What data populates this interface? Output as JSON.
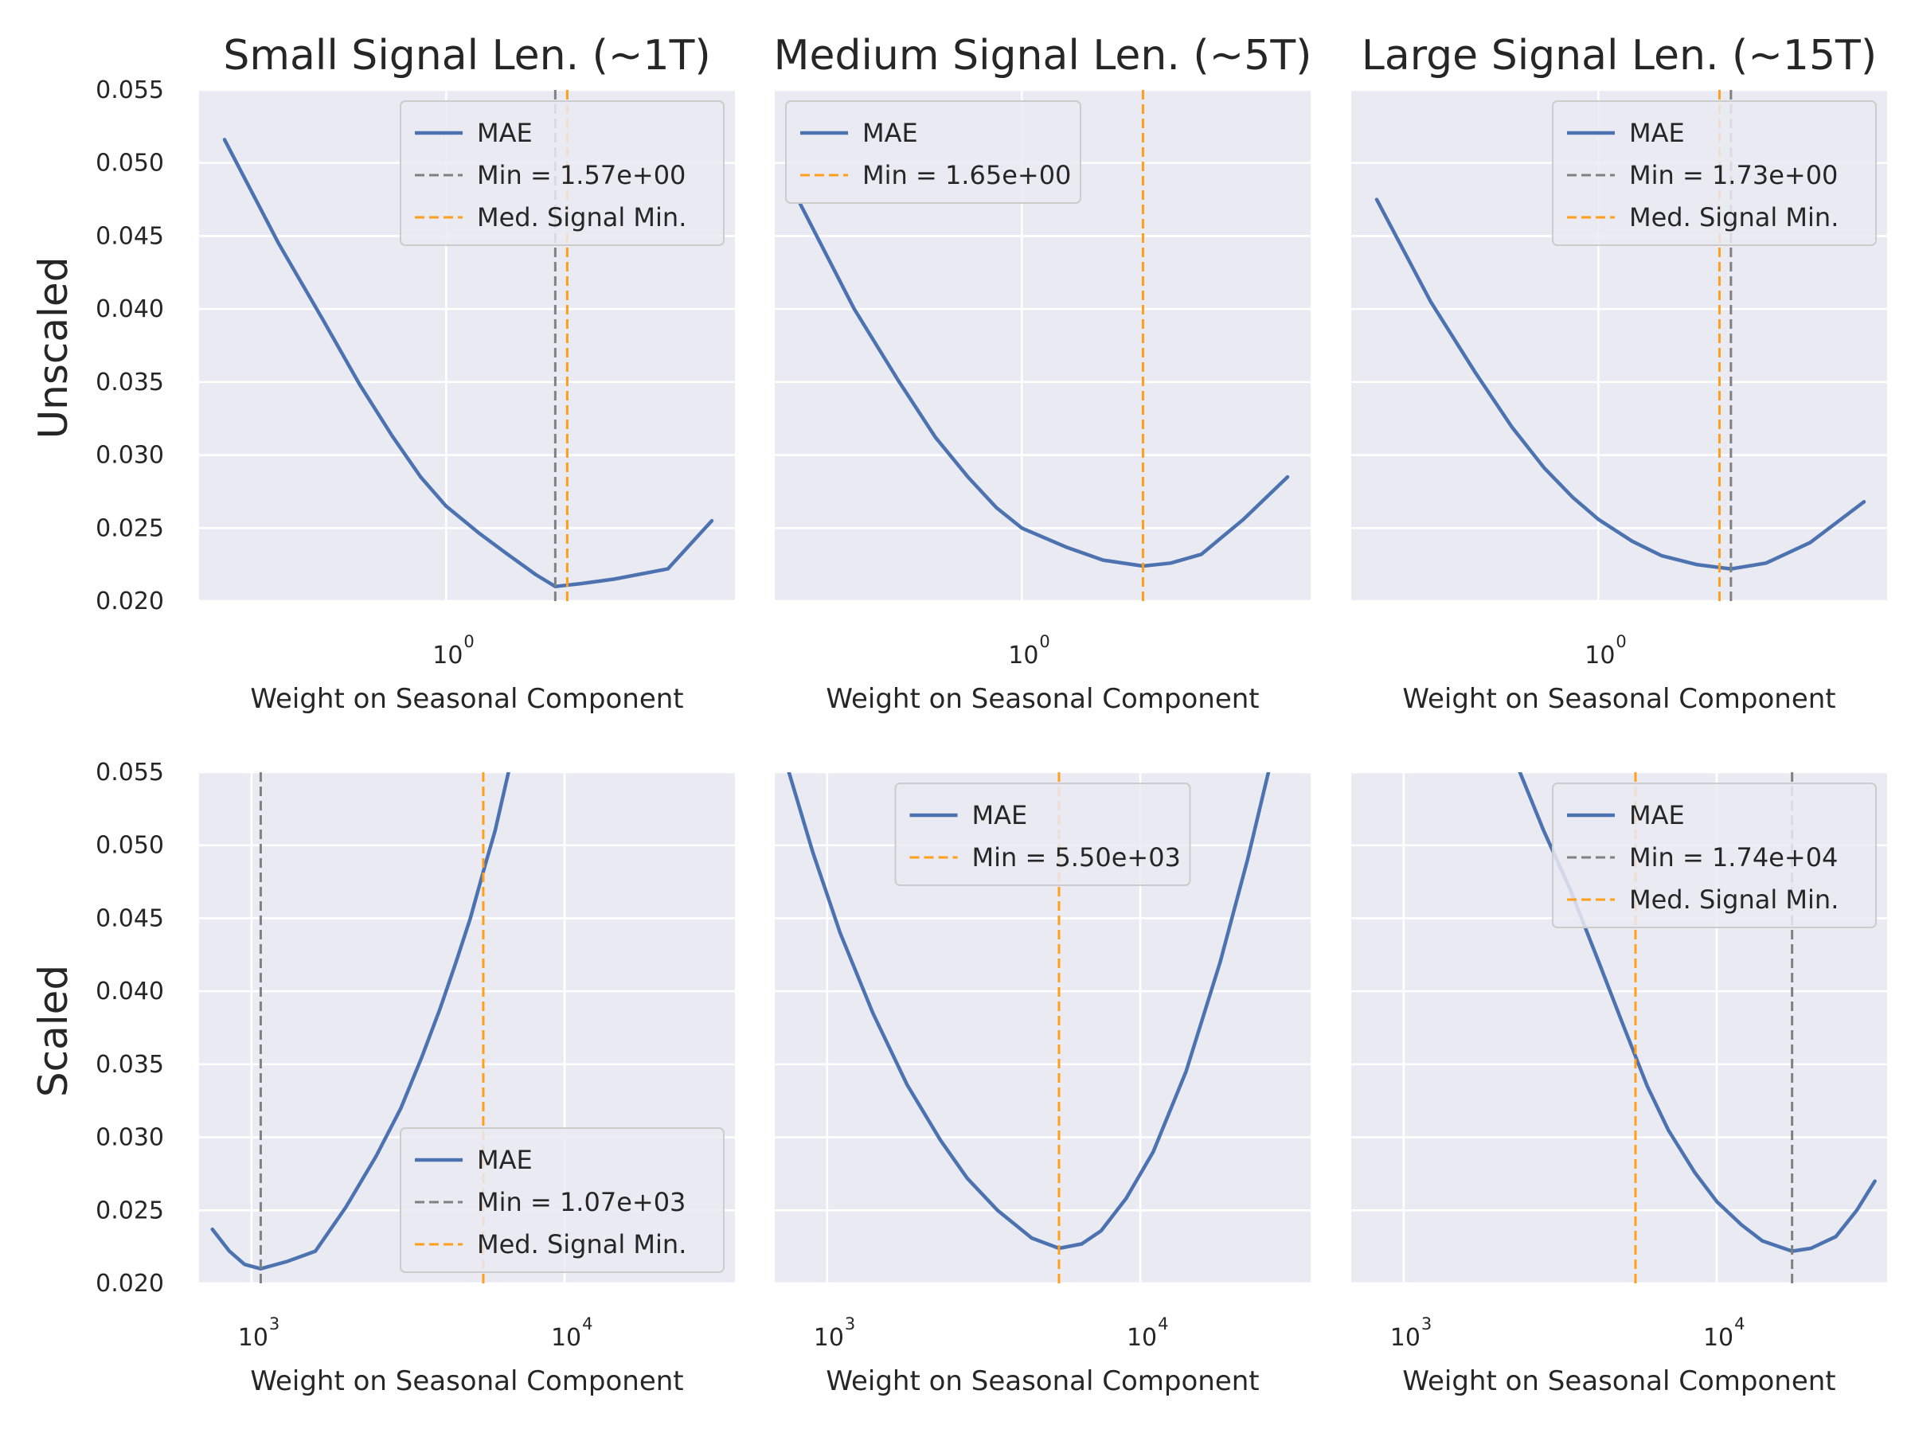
{
  "row_labels": [
    "Unscaled",
    "Scaled"
  ],
  "col_titles": [
    "Small Signal Len. (~1T)",
    "Medium Signal Len. (~5T)",
    "Large Signal Len. (~15T)"
  ],
  "chart_data": [
    {
      "type": "line",
      "row": 0,
      "col": 0,
      "scale": "log",
      "title": "Small Signal Len. (~1T)",
      "ylabel": "Unscaled",
      "xlabel": "Weight on Seasonal Component",
      "xlim": [
        0.36,
        3.3
      ],
      "ylim": [
        0.02,
        0.055
      ],
      "xticks": [
        {
          "value": 1,
          "base": "10",
          "exp": "0"
        }
      ],
      "yticks": [
        "0.020",
        "0.025",
        "0.030",
        "0.035",
        "0.040",
        "0.045",
        "0.050",
        "0.055"
      ],
      "series": [
        {
          "name": "MAE",
          "color": "#4c72b0",
          "x": [
            0.4,
            0.5,
            0.6,
            0.7,
            0.8,
            0.9,
            1.0,
            1.15,
            1.3,
            1.45,
            1.57,
            1.75,
            2.0,
            2.5,
            3.0
          ],
          "y": [
            0.0516,
            0.0445,
            0.0393,
            0.0348,
            0.0313,
            0.0285,
            0.0265,
            0.0246,
            0.0231,
            0.0218,
            0.021,
            0.0212,
            0.0215,
            0.0222,
            0.0255
          ]
        }
      ],
      "vlines": [
        {
          "name": "Min = 1.57e+00",
          "x": 1.57,
          "color": "#808080"
        },
        {
          "name": "Med. Signal Min.",
          "x": 1.65,
          "color": "#ff9f1c"
        }
      ],
      "legend": "upper right"
    },
    {
      "type": "line",
      "row": 0,
      "col": 1,
      "scale": "log",
      "title": "Medium Signal Len. (~5T)",
      "xlabel": "Weight on Seasonal Component",
      "xlim": [
        0.36,
        3.3
      ],
      "ylim": [
        0.02,
        0.055
      ],
      "xticks": [
        {
          "value": 1,
          "base": "10",
          "exp": "0"
        }
      ],
      "series": [
        {
          "name": "MAE",
          "color": "#4c72b0",
          "x": [
            0.4,
            0.5,
            0.6,
            0.7,
            0.8,
            0.9,
            1.0,
            1.2,
            1.4,
            1.65,
            1.85,
            2.1,
            2.5,
            3.0
          ],
          "y": [
            0.0472,
            0.04,
            0.0351,
            0.0312,
            0.0285,
            0.0264,
            0.025,
            0.0237,
            0.0228,
            0.0224,
            0.0226,
            0.0232,
            0.0256,
            0.0285
          ]
        }
      ],
      "vlines": [
        {
          "name": "Min = 1.65e+00",
          "x": 1.65,
          "color": "#ff9f1c"
        }
      ],
      "legend": "upper left"
    },
    {
      "type": "line",
      "row": 0,
      "col": 2,
      "scale": "log",
      "title": "Large Signal Len. (~15T)",
      "xlabel": "Weight on Seasonal Component",
      "xlim": [
        0.36,
        3.3
      ],
      "ylim": [
        0.02,
        0.055
      ],
      "xticks": [
        {
          "value": 1,
          "base": "10",
          "exp": "0"
        }
      ],
      "series": [
        {
          "name": "MAE",
          "color": "#4c72b0",
          "x": [
            0.4,
            0.5,
            0.6,
            0.7,
            0.8,
            0.9,
            1.0,
            1.15,
            1.3,
            1.5,
            1.73,
            2.0,
            2.4,
            3.0
          ],
          "y": [
            0.0475,
            0.0405,
            0.0357,
            0.0319,
            0.0291,
            0.0271,
            0.0256,
            0.0241,
            0.0231,
            0.0225,
            0.0222,
            0.0226,
            0.024,
            0.0268
          ]
        }
      ],
      "vlines": [
        {
          "name": "Min = 1.73e+00",
          "x": 1.73,
          "color": "#808080"
        },
        {
          "name": "Med. Signal Min.",
          "x": 1.65,
          "color": "#ff9f1c"
        }
      ],
      "legend": "upper right"
    },
    {
      "type": "line",
      "row": 1,
      "col": 0,
      "scale": "log",
      "ylabel": "Scaled",
      "xlabel": "Weight on Seasonal Component",
      "xlim": [
        680,
        35000
      ],
      "ylim": [
        0.02,
        0.055
      ],
      "xticks": [
        {
          "value": 1000,
          "base": "10",
          "exp": "3"
        },
        {
          "value": 10000,
          "base": "10",
          "exp": "4"
        }
      ],
      "yticks": [
        "0.020",
        "0.025",
        "0.030",
        "0.035",
        "0.040",
        "0.045",
        "0.050",
        "0.055"
      ],
      "series": [
        {
          "name": "MAE",
          "color": "#4c72b0",
          "x": [
            750,
            850,
            950,
            1070,
            1300,
            1600,
            2000,
            2500,
            3000,
            3500,
            4000,
            4500,
            5000,
            5500,
            6000,
            6700
          ],
          "y": [
            0.0237,
            0.0222,
            0.0213,
            0.021,
            0.0215,
            0.0222,
            0.0252,
            0.0287,
            0.032,
            0.0355,
            0.0388,
            0.042,
            0.045,
            0.0482,
            0.051,
            0.0555
          ]
        }
      ],
      "vlines": [
        {
          "name": "Min = 1.07e+03",
          "x": 1070,
          "color": "#808080"
        },
        {
          "name": "Med. Signal Min.",
          "x": 5500,
          "color": "#ff9f1c"
        }
      ],
      "legend": "lower right"
    },
    {
      "type": "line",
      "row": 1,
      "col": 1,
      "scale": "log",
      "xlabel": "Weight on Seasonal Component",
      "xlim": [
        680,
        35000
      ],
      "ylim": [
        0.02,
        0.055
      ],
      "xticks": [
        {
          "value": 1000,
          "base": "10",
          "exp": "3"
        },
        {
          "value": 10000,
          "base": "10",
          "exp": "4"
        }
      ],
      "series": [
        {
          "name": "MAE",
          "color": "#4c72b0",
          "x": [
            750,
            900,
            1100,
            1400,
            1800,
            2300,
            2800,
            3500,
            4500,
            5500,
            6500,
            7500,
            9000,
            11000,
            14000,
            18000,
            22000,
            26000
          ],
          "y": [
            0.0552,
            0.0495,
            0.044,
            0.0385,
            0.0336,
            0.0298,
            0.0272,
            0.025,
            0.0231,
            0.0224,
            0.0227,
            0.0236,
            0.0258,
            0.029,
            0.0345,
            0.042,
            0.049,
            0.0555
          ]
        }
      ],
      "vlines": [
        {
          "name": "Min = 5.50e+03",
          "x": 5500,
          "color": "#ff9f1c"
        }
      ],
      "legend": "upper center"
    },
    {
      "type": "line",
      "row": 1,
      "col": 2,
      "scale": "log",
      "xlabel": "Weight on Seasonal Component",
      "xlim": [
        680,
        35000
      ],
      "ylim": [
        0.02,
        0.055
      ],
      "xticks": [
        {
          "value": 1000,
          "base": "10",
          "exp": "3"
        },
        {
          "value": 10000,
          "base": "10",
          "exp": "4"
        }
      ],
      "series": [
        {
          "name": "MAE",
          "color": "#4c72b0",
          "x": [
            2300,
            2800,
            3400,
            4200,
            5000,
            6000,
            7000,
            8500,
            10000,
            12000,
            14000,
            17400,
            20000,
            24000,
            28000,
            32000
          ],
          "y": [
            0.0555,
            0.051,
            0.047,
            0.042,
            0.0378,
            0.0335,
            0.0305,
            0.0276,
            0.0256,
            0.024,
            0.0229,
            0.0222,
            0.0224,
            0.0232,
            0.025,
            0.027
          ]
        }
      ],
      "vlines": [
        {
          "name": "Min = 1.74e+04",
          "x": 17400,
          "color": "#808080"
        },
        {
          "name": "Med. Signal Min.",
          "x": 5500,
          "color": "#ff9f1c"
        }
      ],
      "legend": "upper right"
    }
  ]
}
